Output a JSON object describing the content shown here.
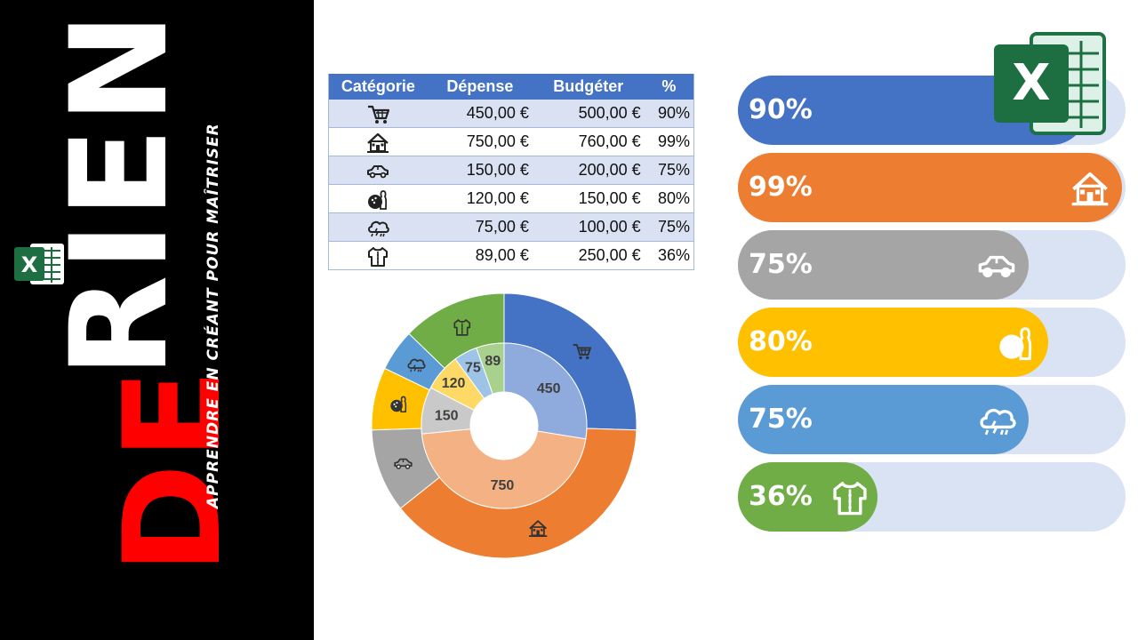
{
  "banner": {
    "brand_red": "DE",
    "brand_white": "RIEN",
    "tagline": "APPRENDRE EN CRÉANT POUR MAÎTRISER",
    "logo_letter": "X"
  },
  "table": {
    "headers": [
      "Catégorie",
      "Dépense",
      "Budgéter",
      "%"
    ],
    "rows": [
      {
        "icon": "shopping-cart-icon",
        "depense": "450,00 €",
        "budget": "500,00 €",
        "pct": "90%"
      },
      {
        "icon": "house-icon",
        "depense": "750,00 €",
        "budget": "760,00 €",
        "pct": "99%"
      },
      {
        "icon": "car-icon",
        "depense": "150,00 €",
        "budget": "200,00 €",
        "pct": "75%"
      },
      {
        "icon": "bowling-icon",
        "depense": "120,00 €",
        "budget": "150,00 €",
        "pct": "80%"
      },
      {
        "icon": "weather-icon",
        "depense": "75,00 €",
        "budget": "100,00 €",
        "pct": "75%"
      },
      {
        "icon": "shirt-icon",
        "depense": "89,00 €",
        "budget": "250,00 €",
        "pct": "36%"
      }
    ]
  },
  "chart_data": [
    {
      "type": "pie",
      "variant": "doughnut",
      "categories": [
        "shopping-cart-icon",
        "house-icon",
        "car-icon",
        "bowling-icon",
        "weather-icon",
        "shirt-icon"
      ],
      "series": [
        {
          "values": [
            500,
            760,
            200,
            150,
            100,
            250
          ]
        },
        {
          "values": [
            450,
            750,
            150,
            120,
            75,
            89
          ]
        }
      ],
      "data_labels": [
        "450",
        "750",
        "150",
        "120",
        "75",
        "89"
      ],
      "colors": [
        "#4472c4",
        "#ed7d31",
        "#a5a5a5",
        "#ffc000",
        "#5b9bd5",
        "#70ad47"
      ],
      "inner_colors": [
        "#8faadc",
        "#f4b183",
        "#c9c9c9",
        "#ffd966",
        "#9dc3e6",
        "#a9d18e"
      ]
    },
    {
      "type": "bar",
      "orientation": "horizontal",
      "categories": [
        "shopping-cart-icon",
        "house-icon",
        "car-icon",
        "bowling-icon",
        "weather-icon",
        "shirt-icon"
      ],
      "values": [
        0.9,
        0.99,
        0.75,
        0.8,
        0.75,
        0.36
      ],
      "labels": [
        "90%",
        "99%",
        "75%",
        "80%",
        "75%",
        "36%"
      ],
      "colors": [
        "#4472c4",
        "#ed7d31",
        "#a5a5a5",
        "#ffc000",
        "#5b9bd5",
        "#70ad47"
      ],
      "track_color": "#dae3f3"
    }
  ],
  "excel_logo": {
    "letter": "X",
    "color": "#1d6f42"
  }
}
